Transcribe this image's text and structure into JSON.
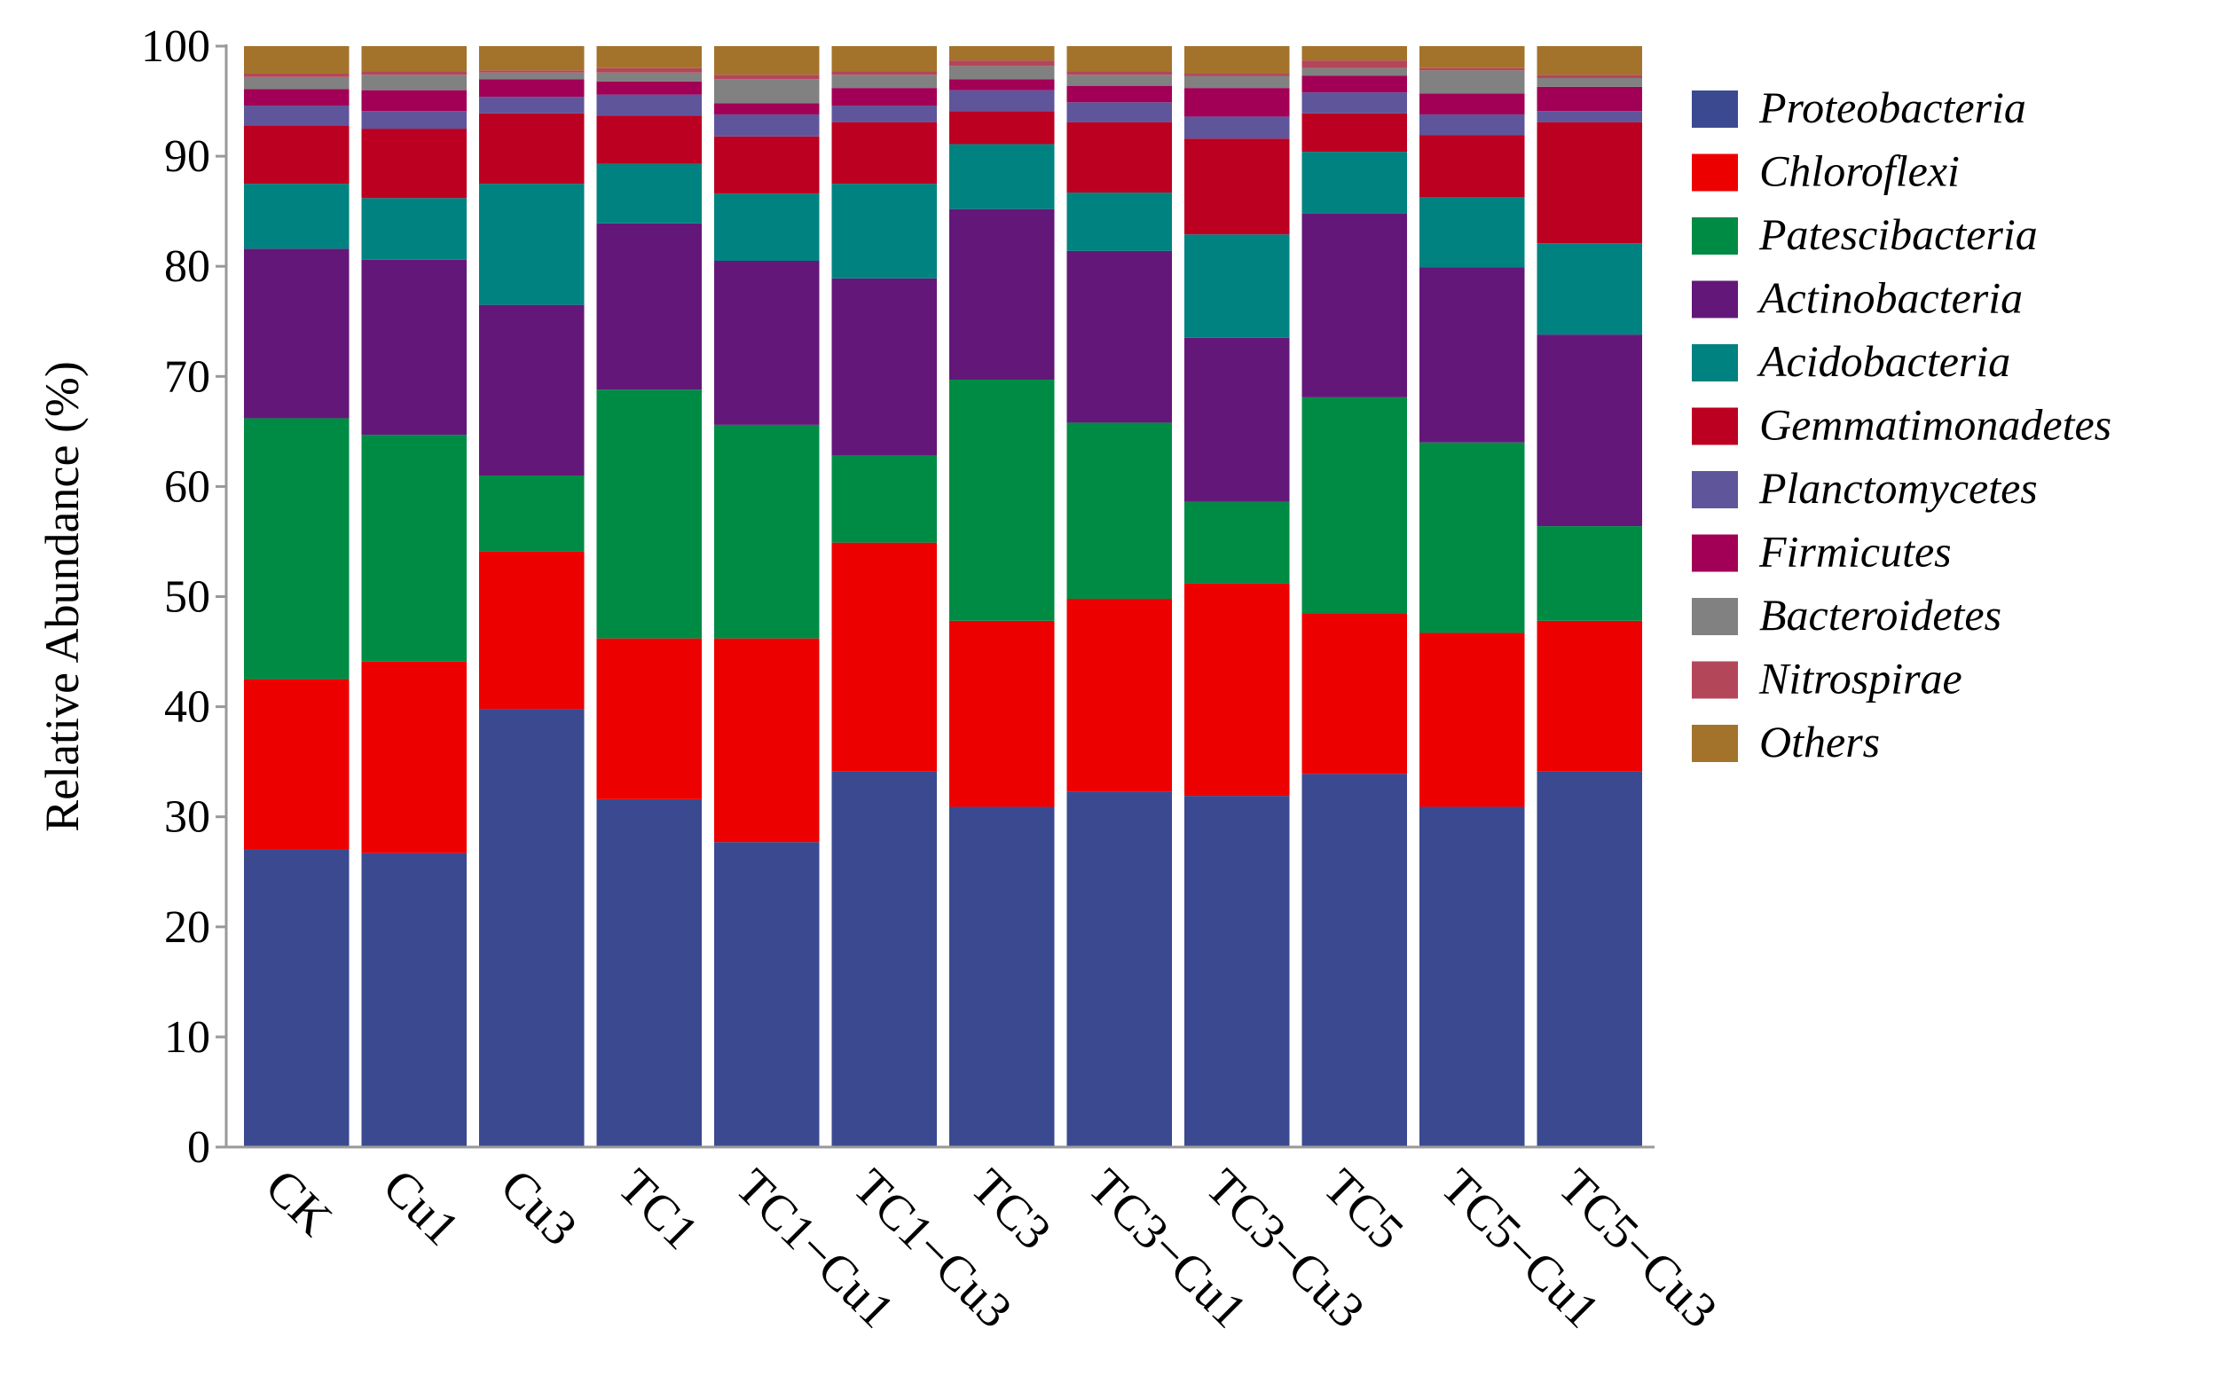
{
  "chart_data": {
    "type": "bar",
    "stacked": true,
    "ylabel": "Relative Abundance (%)",
    "xlabel": "",
    "ylim": [
      0,
      100
    ],
    "yticks": [
      "0",
      "10",
      "20",
      "30",
      "40",
      "50",
      "60",
      "70",
      "80",
      "90",
      "100"
    ],
    "grid": false,
    "legend_position": "right",
    "categories": [
      "CK",
      "Cu1",
      "Cu3",
      "TC1",
      "TC1−Cu1",
      "TC1−Cu3",
      "TC3",
      "TC3−Cu1",
      "TC3−Cu3",
      "TC5",
      "TC5−Cu1",
      "TC5−Cu3"
    ],
    "series": [
      {
        "name": "Proteobacteria",
        "color": "#3b4990",
        "values": [
          27.0,
          26.7,
          39.8,
          31.6,
          27.7,
          34.1,
          30.9,
          32.3,
          31.9,
          33.9,
          30.9,
          34.1
        ]
      },
      {
        "name": "Chloroflexi",
        "color": "#ed0000",
        "values": [
          15.5,
          17.4,
          14.3,
          14.6,
          18.5,
          20.8,
          16.9,
          17.5,
          19.3,
          14.6,
          15.8,
          13.7
        ]
      },
      {
        "name": "Patescibacteria",
        "color": "#008b45",
        "values": [
          23.7,
          20.6,
          6.9,
          22.6,
          19.4,
          7.9,
          21.9,
          16.0,
          7.4,
          19.6,
          17.3,
          8.6
        ]
      },
      {
        "name": "Actinobacteria",
        "color": "#631879",
        "values": [
          15.4,
          15.9,
          15.5,
          15.1,
          14.9,
          16.1,
          15.5,
          15.6,
          14.9,
          16.7,
          15.9,
          17.4
        ]
      },
      {
        "name": "Acidobacteria",
        "color": "#008280",
        "values": [
          5.9,
          5.6,
          11.0,
          5.4,
          6.1,
          8.6,
          5.9,
          5.3,
          9.4,
          5.6,
          6.4,
          8.3
        ]
      },
      {
        "name": "Gemmatimonadetes",
        "color": "#bb0021",
        "values": [
          5.3,
          6.3,
          6.4,
          4.4,
          5.2,
          5.6,
          3.0,
          6.4,
          8.7,
          3.5,
          5.6,
          11.0
        ]
      },
      {
        "name": "Planctomycetes",
        "color": "#5f559b",
        "values": [
          1.8,
          1.6,
          1.5,
          1.9,
          2.0,
          1.5,
          1.9,
          1.8,
          2.0,
          1.9,
          1.9,
          1.0
        ]
      },
      {
        "name": "Firmicutes",
        "color": "#a20056",
        "values": [
          1.5,
          1.9,
          1.6,
          1.2,
          1.0,
          1.6,
          1.0,
          1.5,
          2.6,
          1.5,
          1.9,
          2.2
        ]
      },
      {
        "name": "Bacteroidetes",
        "color": "#808180",
        "values": [
          1.1,
          1.4,
          0.6,
          0.8,
          2.2,
          1.2,
          1.2,
          1.0,
          1.1,
          0.7,
          2.1,
          0.8
        ]
      },
      {
        "name": "Nitrospirae",
        "color": "#b4465a",
        "values": [
          0.3,
          0.3,
          0.2,
          0.4,
          0.4,
          0.3,
          0.5,
          0.3,
          0.2,
          0.7,
          0.2,
          0.3
        ]
      },
      {
        "name": "Others",
        "color": "#a3732b",
        "values": [
          2.5,
          2.3,
          2.2,
          2.0,
          2.6,
          2.3,
          1.3,
          2.3,
          2.5,
          1.3,
          2.0,
          2.6
        ]
      }
    ]
  }
}
